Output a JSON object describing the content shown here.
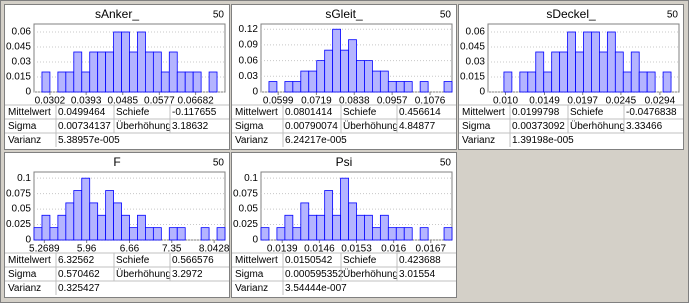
{
  "chart_data": [
    {
      "type": "histogram",
      "title": "sAnker_",
      "n": 50,
      "color": "#b4b4ff",
      "bins": [
        0.0262,
        0.0282,
        0.0302,
        0.0322,
        0.0342,
        0.0362,
        0.0382,
        0.0402,
        0.0422,
        0.0442,
        0.0462,
        0.0482,
        0.0502,
        0.0522,
        0.0542,
        0.0562,
        0.0582,
        0.0602,
        0.0622,
        0.0642,
        0.0662,
        0.0682,
        0.0702,
        0.0722,
        0.0742
      ],
      "values": [
        0,
        0.02,
        0,
        0.02,
        0.02,
        0.04,
        0.02,
        0.04,
        0.04,
        0.04,
        0.06,
        0.06,
        0.04,
        0.06,
        0.04,
        0.04,
        0.02,
        0.04,
        0.02,
        0.02,
        0.02,
        0,
        0.02,
        0
      ],
      "xlim": [
        0.0262,
        0.0742
      ],
      "xticks": [
        0.0302,
        0.0393,
        0.0485,
        0.0577,
        0.06682
      ],
      "ylim": [
        0,
        0.068
      ],
      "yticks": [
        0,
        0.015,
        0.03,
        0.045,
        0.06
      ],
      "grid": true,
      "stats": [
        [
          "Mittelwert",
          "0.0499464",
          "Schiefe",
          "-0.117655"
        ],
        [
          "Sigma",
          "0.00734137",
          "Überhöhung",
          "3.18632"
        ],
        [
          "Varianz",
          "5.38957e-005"
        ]
      ]
    },
    {
      "type": "histogram",
      "title": "sGleit_",
      "n": 50,
      "color": "#b4b4ff",
      "bins": [
        0.0545,
        0.057,
        0.0595,
        0.062,
        0.0645,
        0.067,
        0.0695,
        0.072,
        0.0745,
        0.077,
        0.0795,
        0.082,
        0.0845,
        0.087,
        0.0895,
        0.092,
        0.0945,
        0.097,
        0.0995,
        0.102,
        0.1045,
        0.107,
        0.1095,
        0.112,
        0.1145
      ],
      "values": [
        0,
        0.02,
        0,
        0.02,
        0.02,
        0.04,
        0.04,
        0.06,
        0.08,
        0.12,
        0.08,
        0.1,
        0.06,
        0.06,
        0.04,
        0.04,
        0.02,
        0.02,
        0.02,
        0,
        0.02,
        0,
        0,
        0.02
      ],
      "xlim": [
        0.0545,
        0.1145
      ],
      "xticks": [
        0.0599,
        0.0719,
        0.0838,
        0.0957,
        0.1076
      ],
      "ylim": [
        0,
        0.13
      ],
      "yticks": [
        0,
        0.03,
        0.06,
        0.09,
        0.12
      ],
      "grid": true,
      "stats": [
        [
          "Mittelwert",
          "0.0801414",
          "Schiefe",
          "0.456614"
        ],
        [
          "Sigma",
          "0.00790074",
          "Überhöhung",
          "4.84877"
        ],
        [
          "Varianz",
          "6.24217e-005"
        ]
      ]
    },
    {
      "type": "histogram",
      "title": "sDeckel_",
      "n": 50,
      "color": "#b4b4ff",
      "bins": [
        0.0078,
        0.0088,
        0.0098,
        0.0108,
        0.0118,
        0.0128,
        0.0138,
        0.0148,
        0.0158,
        0.0168,
        0.0178,
        0.0188,
        0.0198,
        0.0208,
        0.0218,
        0.0228,
        0.0238,
        0.0248,
        0.0258,
        0.0268,
        0.0278,
        0.0288,
        0.0298,
        0.0308,
        0.0318
      ],
      "values": [
        0,
        0,
        0.02,
        0,
        0.02,
        0.02,
        0.04,
        0.02,
        0.04,
        0.04,
        0.06,
        0.04,
        0.06,
        0.06,
        0.04,
        0.06,
        0.04,
        0.02,
        0.04,
        0.02,
        0.02,
        0,
        0.02,
        0
      ],
      "xlim": [
        0.0078,
        0.0318
      ],
      "xticks": [
        {
          "value": 0.01,
          "label": "0.010"
        },
        0.0149,
        0.0197,
        0.0245,
        0.0294
      ],
      "ylim": [
        0,
        0.068
      ],
      "yticks": [
        0,
        0.015,
        0.03,
        0.045,
        0.06
      ],
      "grid": true,
      "stats": [
        [
          "Mittelwert",
          "0.0199798",
          "Schiefe",
          "-0.0476838"
        ],
        [
          "Sigma",
          "0.00373092",
          "Überhöhung",
          "3.33466"
        ],
        [
          "Varianz",
          "1.39198e-005"
        ]
      ]
    },
    {
      "type": "histogram",
      "title": "F",
      "n": 50,
      "color": "#b4b4ff",
      "bins": [
        5.1,
        5.23,
        5.36,
        5.49,
        5.62,
        5.75,
        5.88,
        6.01,
        6.14,
        6.27,
        6.4,
        6.53,
        6.66,
        6.79,
        6.92,
        7.05,
        7.18,
        7.31,
        7.44,
        7.57,
        7.7,
        7.83,
        7.96,
        8.09,
        8.22
      ],
      "values": [
        0.02,
        0.04,
        0.02,
        0.04,
        0.06,
        0.08,
        0.1,
        0.06,
        0.04,
        0.08,
        0.06,
        0.04,
        0.02,
        0.04,
        0.02,
        0.02,
        0,
        0.02,
        0.02,
        0,
        0,
        0.02,
        0,
        0.02
      ],
      "xlim": [
        5.1,
        8.22
      ],
      "xticks": [
        5.2689,
        5.96,
        6.66,
        7.35,
        8.0428
      ],
      "ylim": [
        0,
        0.11
      ],
      "yticks": [
        0,
        0.025,
        0.05,
        0.075,
        0.1
      ],
      "grid": true,
      "stats": [
        [
          "Mittelwert",
          "6.32562",
          "Schiefe",
          "0.566576"
        ],
        [
          "Sigma",
          "0.570462",
          "Überhöhung",
          "3.2972"
        ],
        [
          "Varianz",
          "0.325427"
        ]
      ]
    },
    {
      "type": "histogram",
      "title": "Psi",
      "n": 50,
      "color": "#b4b4ff",
      "bins": [
        0.0135,
        0.01365,
        0.0138,
        0.01395,
        0.0141,
        0.01425,
        0.0144,
        0.01455,
        0.0147,
        0.01485,
        0.015,
        0.01515,
        0.0153,
        0.01545,
        0.0156,
        0.01575,
        0.0159,
        0.01605,
        0.0162,
        0.01635,
        0.0165,
        0.01665,
        0.0168,
        0.01695,
        0.0171
      ],
      "values": [
        0.02,
        0,
        0.02,
        0.04,
        0.02,
        0.06,
        0.04,
        0.04,
        0.08,
        0.04,
        0.1,
        0.06,
        0.04,
        0.04,
        0.02,
        0.04,
        0.02,
        0.02,
        0.02,
        0,
        0.02,
        0,
        0,
        0.02
      ],
      "xlim": [
        0.0135,
        0.0171
      ],
      "xticks": [
        0.0139,
        0.0146,
        0.0153,
        0.016,
        0.0167
      ],
      "ylim": [
        0,
        0.11
      ],
      "yticks": [
        0,
        0.025,
        0.05,
        0.075,
        0.1
      ],
      "grid": true,
      "stats": [
        [
          "Mittelwert",
          "0.0150542",
          "Schiefe",
          "0.423688"
        ],
        [
          "Sigma",
          "0.000595352",
          "Überhöhung",
          "3.01554"
        ],
        [
          "Varianz",
          "3.54444e-007"
        ]
      ]
    }
  ]
}
